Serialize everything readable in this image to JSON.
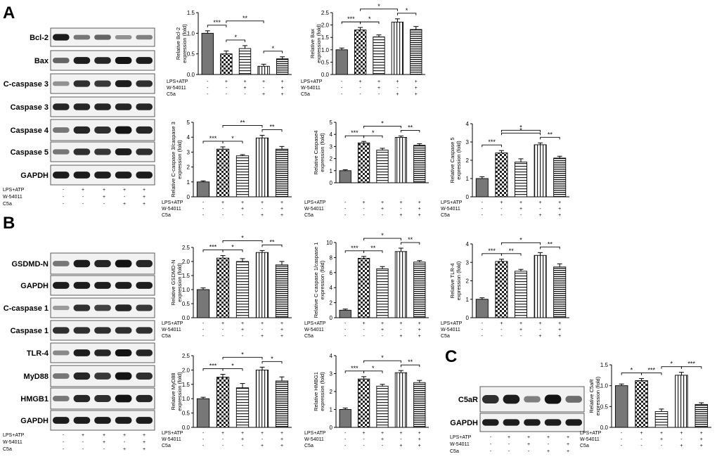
{
  "panels": [
    {
      "letter": "A"
    },
    {
      "letter": "B"
    },
    {
      "letter": "C"
    }
  ],
  "conditions": {
    "labels": [
      "LPS+ATP",
      "W-54011",
      "C5a"
    ],
    "matrix": [
      [
        "-",
        "+",
        "+",
        "+",
        "+"
      ],
      [
        "-",
        "-",
        "+",
        "-",
        "+"
      ],
      [
        "-",
        "-",
        "-",
        "+",
        "+"
      ]
    ]
  },
  "blots": [
    {
      "id": "A",
      "lanes": 5,
      "bands": [
        {
          "label": "Bcl-2",
          "intensity": [
            0.95,
            0.45,
            0.55,
            0.3,
            0.4
          ]
        },
        {
          "label": "Bax",
          "intensity": [
            0.55,
            0.95,
            0.9,
            1.0,
            0.95
          ]
        },
        {
          "label": "C-caspase 3",
          "intensity": [
            0.3,
            0.85,
            0.8,
            0.95,
            0.85
          ]
        },
        {
          "label": "Caspase 3",
          "intensity": [
            0.9,
            0.9,
            0.9,
            0.9,
            0.9
          ]
        },
        {
          "label": "Caspase 4",
          "intensity": [
            0.45,
            0.9,
            0.85,
            1.0,
            0.9
          ]
        },
        {
          "label": "Caspase 5",
          "intensity": [
            0.45,
            0.85,
            0.8,
            0.95,
            0.85
          ]
        },
        {
          "label": "GAPDH",
          "intensity": [
            0.95,
            0.95,
            0.95,
            0.95,
            0.95
          ]
        }
      ]
    },
    {
      "id": "B",
      "lanes": 5,
      "bands": [
        {
          "label": "GSDMD-N",
          "intensity": [
            0.45,
            0.95,
            0.9,
            1.0,
            0.9
          ]
        },
        {
          "label": "GAPDH",
          "intensity": [
            0.95,
            0.95,
            0.95,
            0.95,
            0.95
          ]
        },
        {
          "label": "C-caspase 1",
          "intensity": [
            0.25,
            0.85,
            0.75,
            0.9,
            0.8
          ]
        },
        {
          "label": "Caspase 1",
          "intensity": [
            0.85,
            0.85,
            0.85,
            0.85,
            0.85
          ]
        },
        {
          "label": "TLR-4",
          "intensity": [
            0.35,
            0.95,
            0.9,
            1.0,
            0.9
          ]
        },
        {
          "label": "MyD88",
          "intensity": [
            0.45,
            0.9,
            0.8,
            1.0,
            0.85
          ]
        },
        {
          "label": "HMGB1",
          "intensity": [
            0.45,
            0.9,
            0.85,
            1.0,
            0.9
          ]
        },
        {
          "label": "GAPDH",
          "intensity": [
            0.95,
            0.95,
            0.95,
            0.95,
            0.95
          ]
        }
      ]
    },
    {
      "id": "C",
      "lanes": 5,
      "bands": [
        {
          "label": "C5aR",
          "intensity": [
            0.85,
            0.95,
            0.4,
            1.0,
            0.5
          ]
        },
        {
          "label": "GAPDH",
          "intensity": [
            0.95,
            0.95,
            0.95,
            0.95,
            0.95
          ]
        }
      ]
    }
  ],
  "chart_data": [
    {
      "type": "bar",
      "ylabel": "Relative Bcl-2 expression (fold)",
      "ylim": [
        0,
        1.5
      ],
      "yticks": [
        "0.0",
        "0.5",
        "1.0",
        "1.5"
      ],
      "values": [
        1.0,
        0.5,
        0.63,
        0.2,
        0.38
      ],
      "errors": [
        0.06,
        0.07,
        0.07,
        0.05,
        0.05
      ],
      "brackets": [
        {
          "from": 0,
          "to": 1,
          "label": "***"
        },
        {
          "from": 1,
          "to": 2,
          "label": "*"
        },
        {
          "from": 1,
          "to": 3,
          "label": "**"
        },
        {
          "from": 3,
          "to": 4,
          "label": "*"
        }
      ]
    },
    {
      "type": "bar",
      "ylabel": "Relative Bax expression (fold)",
      "ylim": [
        0,
        2.5
      ],
      "yticks": [
        "0.0",
        "0.5",
        "1.0",
        "1.5",
        "2.0",
        "2.5"
      ],
      "values": [
        1.0,
        1.8,
        1.52,
        2.12,
        1.82
      ],
      "errors": [
        0.07,
        0.1,
        0.08,
        0.13,
        0.12
      ],
      "brackets": [
        {
          "from": 0,
          "to": 1,
          "label": "***"
        },
        {
          "from": 1,
          "to": 2,
          "label": "*"
        },
        {
          "from": 1,
          "to": 3,
          "label": "*"
        },
        {
          "from": 3,
          "to": 4,
          "label": "*"
        }
      ]
    },
    {
      "type": "bar",
      "ylabel": "Relative C-caspase 3/caspase 3 expression (fold)",
      "ylim": [
        0,
        5
      ],
      "yticks": [
        "0",
        "1",
        "2",
        "3",
        "4",
        "5"
      ],
      "values": [
        1.0,
        3.2,
        2.75,
        3.95,
        3.2
      ],
      "errors": [
        0.07,
        0.15,
        0.08,
        0.18,
        0.18
      ],
      "brackets": [
        {
          "from": 0,
          "to": 1,
          "label": "***"
        },
        {
          "from": 1,
          "to": 2,
          "label": "*"
        },
        {
          "from": 1,
          "to": 3,
          "label": "**"
        },
        {
          "from": 3,
          "to": 4,
          "label": "**"
        }
      ]
    },
    {
      "type": "bar",
      "ylabel": "Relative Caspase4 expression (fold)",
      "ylim": [
        0,
        5
      ],
      "yticks": [
        "0",
        "1",
        "2",
        "3",
        "4",
        "5"
      ],
      "values": [
        1.0,
        3.3,
        2.7,
        3.75,
        3.1
      ],
      "errors": [
        0.08,
        0.12,
        0.15,
        0.12,
        0.13
      ],
      "brackets": [
        {
          "from": 0,
          "to": 1,
          "label": "***"
        },
        {
          "from": 1,
          "to": 2,
          "label": "*"
        },
        {
          "from": 1,
          "to": 3,
          "label": "*"
        },
        {
          "from": 3,
          "to": 4,
          "label": "**"
        }
      ]
    },
    {
      "type": "bar",
      "ylabel": "Relative Caspase 5 expression (fold)",
      "ylim": [
        0,
        4
      ],
      "yticks": [
        "0",
        "1",
        "2",
        "3",
        "4"
      ],
      "values": [
        1.0,
        2.4,
        1.9,
        2.85,
        2.12
      ],
      "errors": [
        0.1,
        0.13,
        0.18,
        0.1,
        0.1
      ],
      "brackets": [
        {
          "from": 0,
          "to": 1,
          "label": "***"
        },
        {
          "from": 1,
          "to": 3,
          "label": "*"
        },
        {
          "from": 1,
          "to": 3,
          "label": "*"
        },
        {
          "from": 3,
          "to": 4,
          "label": "**"
        }
      ]
    },
    {
      "type": "bar",
      "ylabel": "Relative GSDMD-N expression (fold)",
      "ylim": [
        0,
        2.5
      ],
      "yticks": [
        "0.0",
        "0.5",
        "1.0",
        "1.5",
        "2.0",
        "2.5"
      ],
      "values": [
        1.0,
        2.12,
        2.0,
        2.32,
        1.88
      ],
      "errors": [
        0.06,
        0.09,
        0.1,
        0.07,
        0.12
      ],
      "brackets": [
        {
          "from": 0,
          "to": 1,
          "label": "***"
        },
        {
          "from": 1,
          "to": 2,
          "label": "*"
        },
        {
          "from": 1,
          "to": 3,
          "label": "*"
        },
        {
          "from": 3,
          "to": 4,
          "label": "**"
        }
      ]
    },
    {
      "type": "bar",
      "ylabel": "Relative C-caspase 1/caspase 1 expression (fold)",
      "ylim": [
        0,
        10
      ],
      "yticks": [
        "0",
        "2",
        "4",
        "6",
        "8",
        "10"
      ],
      "values": [
        1.0,
        7.9,
        6.5,
        8.8,
        7.4
      ],
      "errors": [
        0.15,
        0.25,
        0.3,
        0.45,
        0.2
      ],
      "brackets": [
        {
          "from": 0,
          "to": 1,
          "label": "***"
        },
        {
          "from": 1,
          "to": 2,
          "label": "**"
        },
        {
          "from": 1,
          "to": 3,
          "label": "*"
        },
        {
          "from": 3,
          "to": 4,
          "label": "**"
        }
      ]
    },
    {
      "type": "bar",
      "ylabel": "Relative TLR-4 expression (fold)",
      "ylim": [
        0,
        4
      ],
      "yticks": [
        "0",
        "1",
        "2",
        "3",
        "4"
      ],
      "values": [
        1.0,
        3.05,
        2.52,
        3.38,
        2.75
      ],
      "errors": [
        0.08,
        0.12,
        0.1,
        0.15,
        0.17
      ],
      "brackets": [
        {
          "from": 0,
          "to": 1,
          "label": "***"
        },
        {
          "from": 1,
          "to": 2,
          "label": "**"
        },
        {
          "from": 1,
          "to": 3,
          "label": "*"
        },
        {
          "from": 3,
          "to": 4,
          "label": "**"
        }
      ]
    },
    {
      "type": "bar",
      "ylabel": "Relative MyD88 expression (fold)",
      "ylim": [
        0,
        2.5
      ],
      "yticks": [
        "0.0",
        "0.5",
        "1.0",
        "1.5",
        "2.0",
        "2.5"
      ],
      "values": [
        1.0,
        1.75,
        1.38,
        2.0,
        1.62
      ],
      "errors": [
        0.05,
        0.1,
        0.15,
        0.1,
        0.14
      ],
      "brackets": [
        {
          "from": 0,
          "to": 1,
          "label": "***"
        },
        {
          "from": 1,
          "to": 2,
          "label": "*"
        },
        {
          "from": 1,
          "to": 3,
          "label": "*"
        },
        {
          "from": 3,
          "to": 4,
          "label": "*"
        }
      ]
    },
    {
      "type": "bar",
      "ylabel": "Relative HMBG1 expression (fold)",
      "ylim": [
        0,
        4
      ],
      "yticks": [
        "0",
        "1",
        "2",
        "3",
        "4"
      ],
      "values": [
        1.0,
        2.7,
        2.3,
        3.05,
        2.5
      ],
      "errors": [
        0.08,
        0.13,
        0.1,
        0.12,
        0.12
      ],
      "brackets": [
        {
          "from": 0,
          "to": 1,
          "label": "***"
        },
        {
          "from": 1,
          "to": 2,
          "label": "*"
        },
        {
          "from": 1,
          "to": 3,
          "label": "*"
        },
        {
          "from": 3,
          "to": 4,
          "label": "**"
        }
      ]
    },
    {
      "type": "bar",
      "ylabel": "Relative C5aR expression (fold)",
      "ylim": [
        0,
        1.5
      ],
      "yticks": [
        "0.0",
        "0.5",
        "1.0",
        "1.5"
      ],
      "values": [
        1.0,
        1.12,
        0.38,
        1.25,
        0.55
      ],
      "errors": [
        0.04,
        0.05,
        0.06,
        0.07,
        0.04
      ],
      "brackets": [
        {
          "from": 0,
          "to": 1,
          "label": "*"
        },
        {
          "from": 1,
          "to": 2,
          "label": "***"
        },
        {
          "from": 2,
          "to": 3,
          "label": "*"
        },
        {
          "from": 3,
          "to": 4,
          "label": "***"
        }
      ]
    }
  ]
}
